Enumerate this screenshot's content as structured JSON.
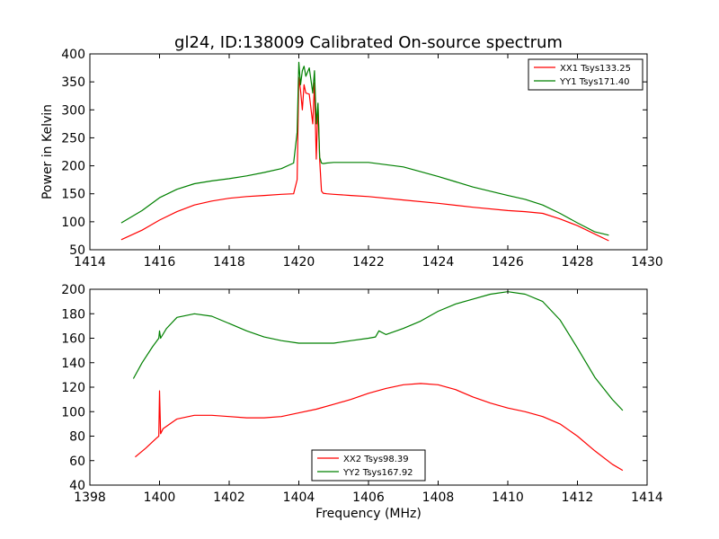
{
  "figure": {
    "title": "gl24, ID:138009 Calibrated On-source spectrum",
    "xlabel": "Frequency (MHz)"
  },
  "chart_data": [
    {
      "type": "line",
      "title": "gl24, ID:138009 Calibrated On-source spectrum",
      "xlabel": "",
      "ylabel": "Power in Kelvin",
      "xlim": [
        1414,
        1430
      ],
      "ylim": [
        50,
        400
      ],
      "xticks": [
        "1414",
        "1416",
        "1418",
        "1420",
        "1422",
        "1424",
        "1426",
        "1428",
        "1430"
      ],
      "yticks": [
        "50",
        "100",
        "150",
        "200",
        "250",
        "300",
        "350",
        "400"
      ],
      "legend_position": "top-right",
      "series": [
        {
          "name": "XX1 Tsys133.25",
          "color": "#ff0000",
          "x": [
            1414.9,
            1415.5,
            1416,
            1416.5,
            1417,
            1417.5,
            1418,
            1418.5,
            1419,
            1419.5,
            1419.85,
            1419.95,
            1420.0,
            1420.05,
            1420.1,
            1420.15,
            1420.2,
            1420.3,
            1420.4,
            1420.45,
            1420.5,
            1420.55,
            1420.6,
            1420.65,
            1420.7,
            1420.8,
            1421,
            1421.5,
            1422,
            1423,
            1424,
            1425,
            1426,
            1426.5,
            1427,
            1427.5,
            1428,
            1428.5,
            1428.9
          ],
          "y": [
            68,
            85,
            103,
            118,
            130,
            137,
            142,
            145,
            147,
            149,
            150,
            175,
            358,
            335,
            300,
            345,
            330,
            328,
            275,
            348,
            212,
            310,
            210,
            155,
            151,
            150,
            149,
            147,
            145,
            139,
            133,
            126,
            120,
            118,
            115,
            105,
            93,
            78,
            66
          ]
        },
        {
          "name": "YY1 Tsys171.40",
          "color": "#008000",
          "x": [
            1414.9,
            1415.5,
            1416,
            1416.5,
            1417,
            1417.5,
            1418,
            1418.5,
            1419,
            1419.5,
            1419.85,
            1419.95,
            1420.0,
            1420.05,
            1420.1,
            1420.15,
            1420.2,
            1420.3,
            1420.4,
            1420.45,
            1420.5,
            1420.55,
            1420.6,
            1420.65,
            1420.7,
            1420.8,
            1421,
            1421.5,
            1422,
            1423,
            1424,
            1425,
            1426,
            1426.5,
            1427,
            1427.5,
            1428,
            1428.5,
            1428.9
          ],
          "y": [
            98,
            120,
            143,
            158,
            168,
            173,
            177,
            182,
            188,
            195,
            205,
            260,
            385,
            345,
            370,
            378,
            360,
            375,
            330,
            370,
            275,
            312,
            215,
            205,
            204,
            205,
            206,
            206,
            206,
            198,
            181,
            162,
            147,
            140,
            130,
            115,
            98,
            82,
            76
          ]
        }
      ]
    },
    {
      "type": "line",
      "title": "",
      "xlabel": "Frequency (MHz)",
      "ylabel": "",
      "xlim": [
        1398,
        1414
      ],
      "ylim": [
        40,
        200
      ],
      "xticks": [
        "1398",
        "1400",
        "1402",
        "1404",
        "1406",
        "1408",
        "1410",
        "1412",
        "1414"
      ],
      "yticks": [
        "40",
        "60",
        "80",
        "100",
        "120",
        "140",
        "160",
        "180",
        "200"
      ],
      "legend_position": "bottom-center",
      "series": [
        {
          "name": "XX2 Tsys98.39",
          "color": "#ff0000",
          "x": [
            1399.3,
            1399.6,
            1399.9,
            1399.98,
            1400.0,
            1400.03,
            1400.1,
            1400.5,
            1401,
            1401.5,
            1402,
            1402.5,
            1403,
            1403.5,
            1404,
            1404.5,
            1405,
            1405.5,
            1406,
            1406.5,
            1407,
            1407.5,
            1408,
            1408.5,
            1409,
            1409.5,
            1410,
            1410.5,
            1411,
            1411.5,
            1412,
            1412.5,
            1413,
            1413.3
          ],
          "y": [
            63,
            70,
            78,
            80,
            117,
            82,
            86,
            94,
            97,
            97,
            96,
            95,
            95,
            96,
            99,
            102,
            106,
            110,
            115,
            119,
            122,
            123,
            122,
            118,
            112,
            107,
            103,
            100,
            96,
            90,
            80,
            68,
            57,
            52
          ]
        },
        {
          "name": "YY2 Tsys167.92",
          "color": "#008000",
          "x": [
            1399.25,
            1399.5,
            1399.8,
            1399.98,
            1400.0,
            1400.03,
            1400.2,
            1400.5,
            1401,
            1401.5,
            1402,
            1402.5,
            1403,
            1403.5,
            1404,
            1404.5,
            1405,
            1405.5,
            1406,
            1406.2,
            1406.3,
            1406.5,
            1407,
            1407.5,
            1408,
            1408.5,
            1409,
            1409.5,
            1410,
            1410.5,
            1411,
            1411.5,
            1412,
            1412.5,
            1413,
            1413.3
          ],
          "y": [
            127,
            140,
            153,
            160,
            166,
            160,
            168,
            177,
            180,
            178,
            172,
            166,
            161,
            158,
            156,
            156,
            156,
            158,
            160,
            161,
            166,
            163,
            168,
            174,
            182,
            188,
            192,
            196,
            198,
            196,
            190,
            175,
            152,
            128,
            110,
            101
          ]
        }
      ]
    }
  ]
}
